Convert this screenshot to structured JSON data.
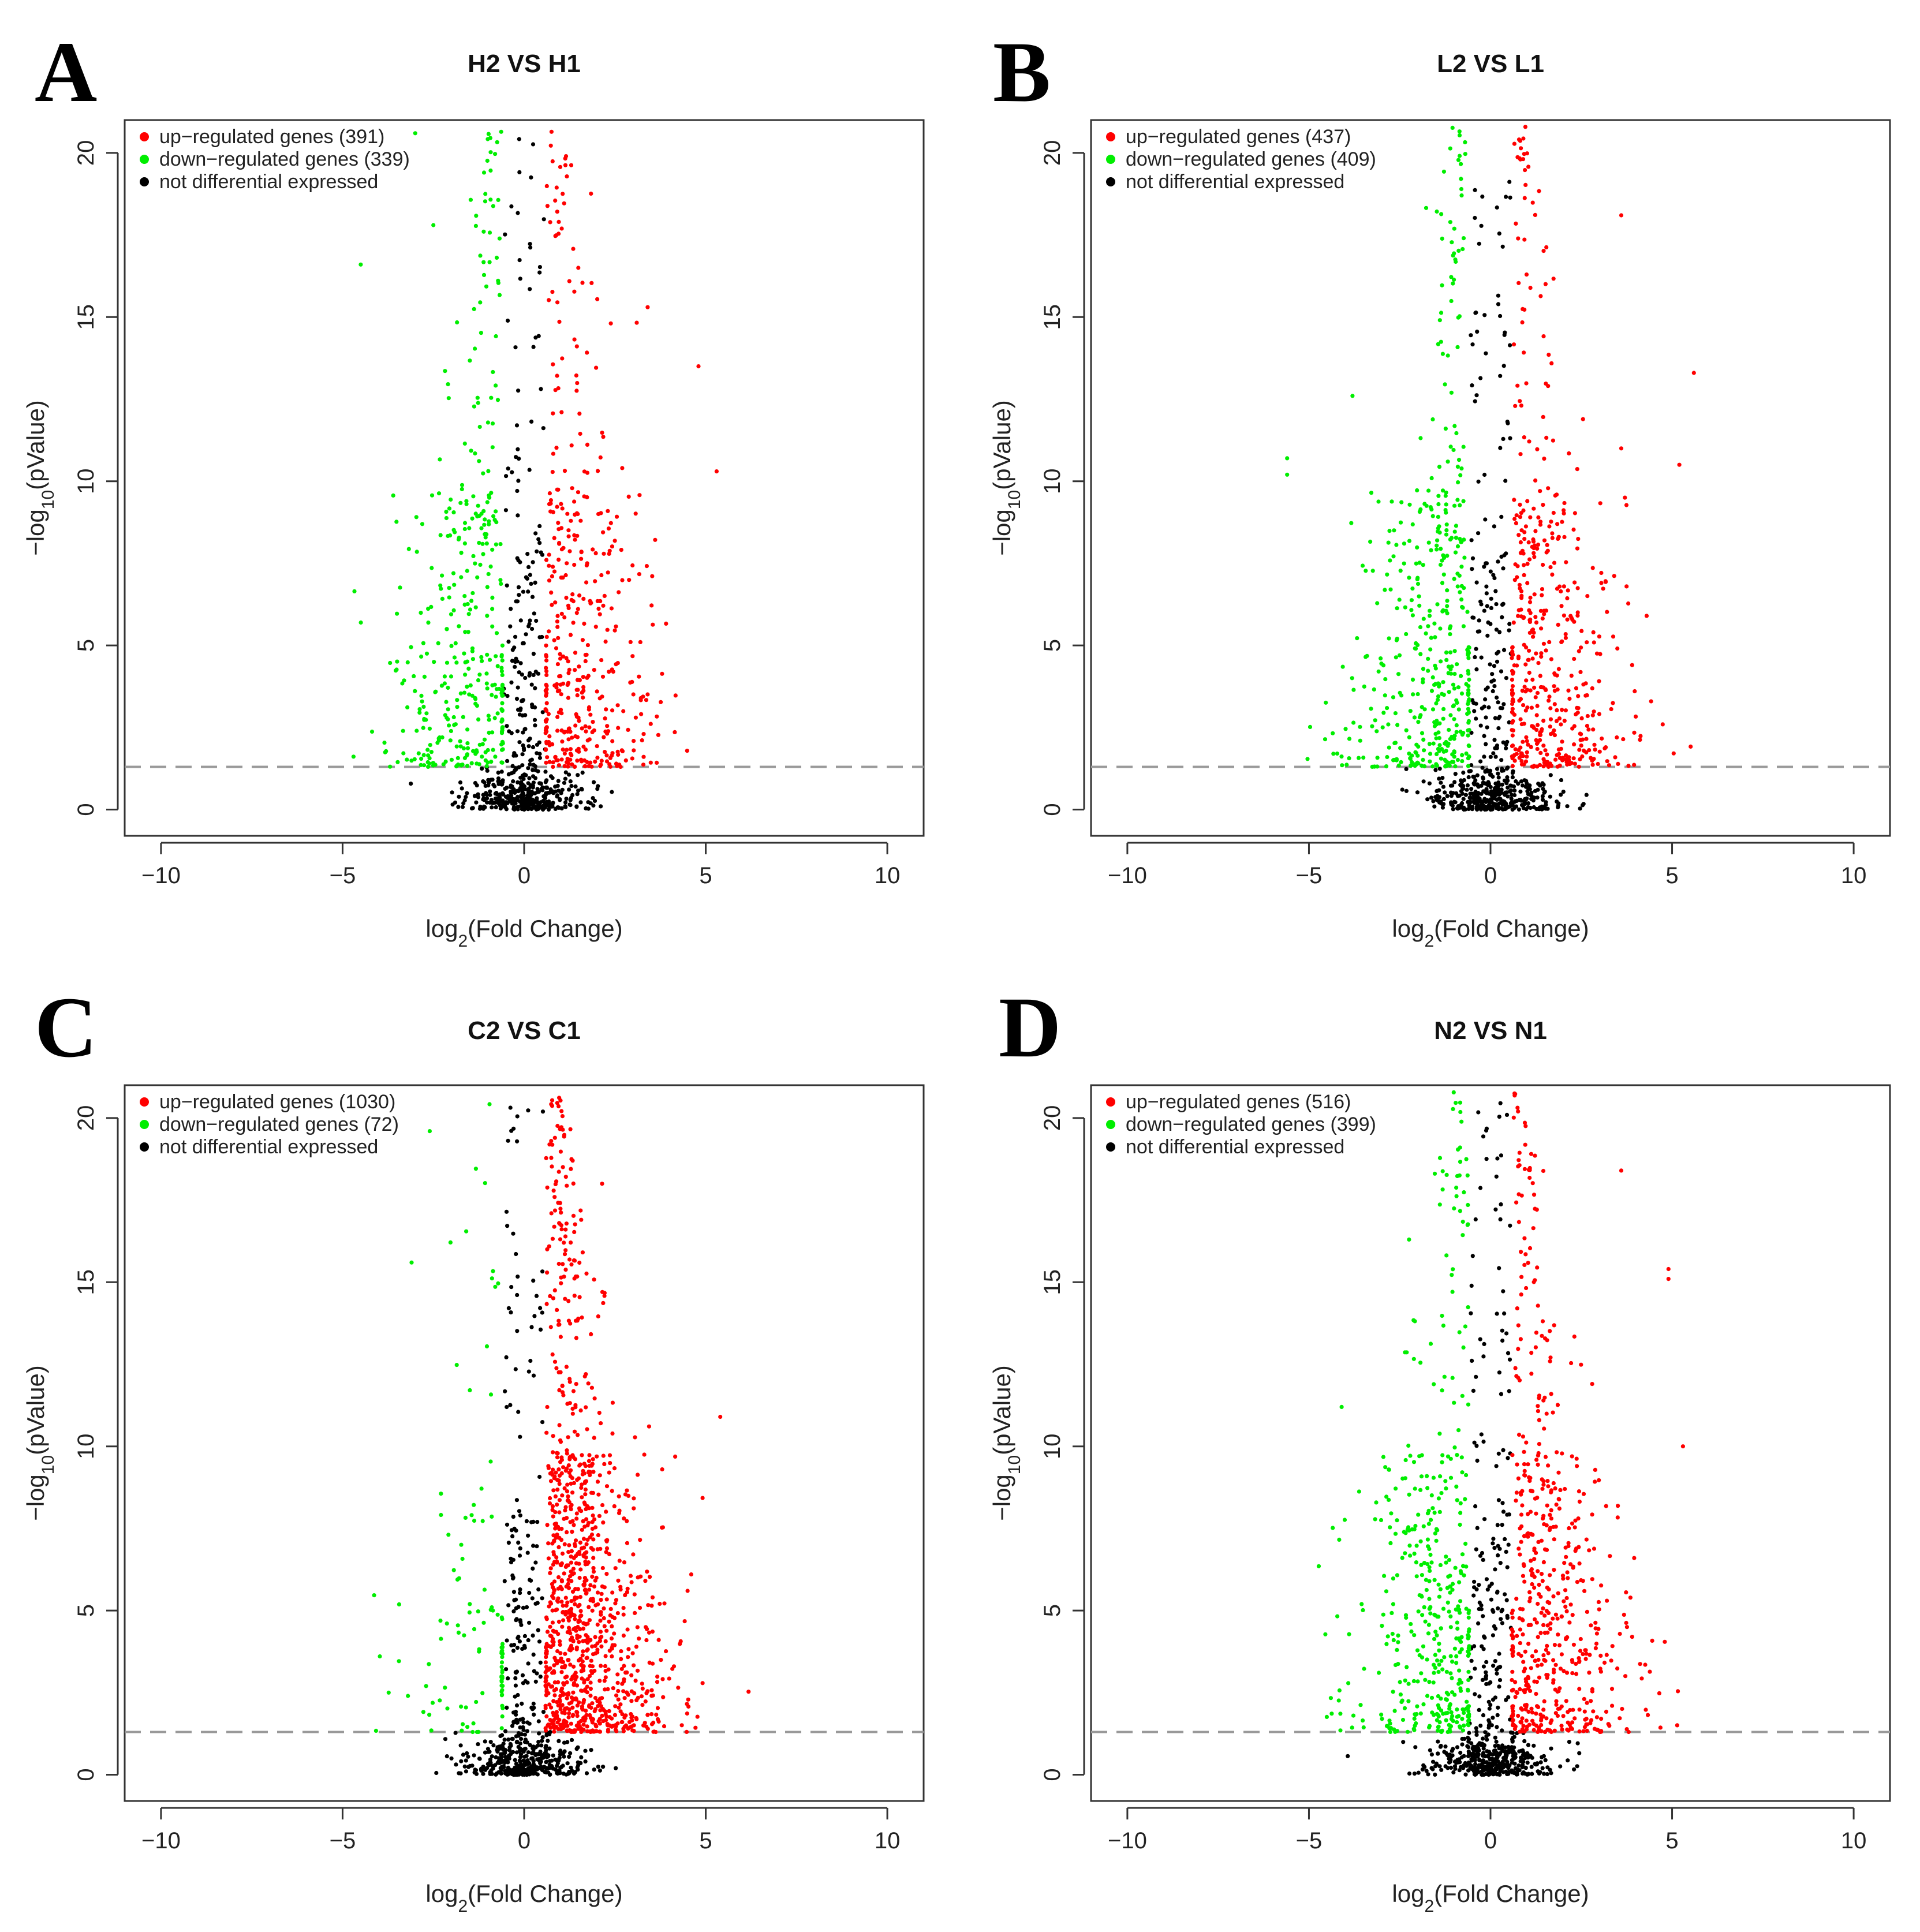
{
  "figure": {
    "panels": [
      "A",
      "B",
      "C",
      "D"
    ]
  },
  "chart_data": [
    {
      "panel": "A",
      "type": "scatter",
      "title": "H2 VS H1",
      "xlabel": "log2(Fold Change)",
      "ylabel": "−log10(pValue)",
      "xlim": [
        -11,
        11
      ],
      "ylim": [
        -0.8,
        21
      ],
      "xticks": [
        -10,
        -5,
        0,
        5,
        10
      ],
      "yticks": [
        0,
        5,
        10,
        15,
        20
      ],
      "threshold_y": 1.3,
      "fc_cutoff": 0.585,
      "legend": {
        "up": "up−regulated genes (391)",
        "down": "down−regulated genes (339)",
        "ns": "not differential expressed"
      },
      "series": [
        {
          "name": "up-regulated genes",
          "count": 391,
          "color": "#ff0000"
        },
        {
          "name": "down-regulated genes",
          "count": 339,
          "color": "#00ee00"
        },
        {
          "name": "not differential expressed",
          "color": "#000000"
        }
      ],
      "outliers": [
        [
          -4.5,
          16.6
        ],
        [
          -2.5,
          17.8
        ],
        [
          -3,
          20.6
        ],
        [
          4.8,
          13.5
        ],
        [
          5.3,
          10.3
        ],
        [
          3.4,
          15.3
        ],
        [
          2.7,
          10.4
        ],
        [
          3.2,
          5.1
        ]
      ],
      "seed": 11
    },
    {
      "panel": "B",
      "type": "scatter",
      "title": "L2 VS L1",
      "xlabel": "log2(Fold Change)",
      "ylabel": "−log10(pValue)",
      "xlim": [
        -11,
        11
      ],
      "ylim": [
        -0.8,
        21
      ],
      "xticks": [
        -10,
        -5,
        0,
        5,
        10
      ],
      "yticks": [
        0,
        5,
        10,
        15,
        20
      ],
      "threshold_y": 1.3,
      "fc_cutoff": 0.585,
      "legend": {
        "up": "up−regulated genes (437)",
        "down": "down−regulated genes (409)",
        "ns": "not differential expressed"
      },
      "series": [
        {
          "name": "up-regulated genes",
          "count": 437,
          "color": "#ff0000"
        },
        {
          "name": "down-regulated genes",
          "count": 409,
          "color": "#00ee00"
        },
        {
          "name": "not differential expressed",
          "color": "#000000"
        }
      ],
      "outliers": [
        [
          -5.6,
          10.7
        ],
        [
          -5.6,
          10.2
        ],
        [
          -3.8,
          12.6
        ],
        [
          3.6,
          18.1
        ],
        [
          5.6,
          13.3
        ],
        [
          5.2,
          10.5
        ],
        [
          4.3,
          5.9
        ],
        [
          3.6,
          11.0
        ],
        [
          3.7,
          9.5
        ],
        [
          3.9,
          4.4
        ]
      ],
      "seed": 23
    },
    {
      "panel": "C",
      "type": "scatter",
      "title": "C2 VS C1",
      "xlabel": "log2(Fold Change)",
      "ylabel": "−log10(pValue)",
      "xlim": [
        -11,
        11
      ],
      "ylim": [
        -0.8,
        21
      ],
      "xticks": [
        -10,
        -5,
        0,
        5,
        10
      ],
      "yticks": [
        0,
        5,
        10,
        15,
        20
      ],
      "threshold_y": 1.3,
      "fc_cutoff": 0.585,
      "legend": {
        "up": "up−regulated genes (1030)",
        "down": "down−regulated genes (72)",
        "ns": "not differential expressed"
      },
      "series": [
        {
          "name": "up-regulated genes",
          "count": 1030,
          "color": "#ff0000"
        },
        {
          "name": "down-regulated genes",
          "count": 72,
          "color": "#00ee00"
        },
        {
          "name": "not differential expressed",
          "color": "#000000"
        }
      ],
      "outliers": [
        [
          -3.1,
          15.6
        ],
        [
          -2.6,
          19.6
        ],
        [
          -3.2,
          2.4
        ],
        [
          -2.7,
          2.7
        ],
        [
          5.4,
          10.9
        ],
        [
          4.6,
          6.1
        ],
        [
          4.5,
          5.6
        ],
        [
          3.8,
          9.3
        ]
      ],
      "seed": 37
    },
    {
      "panel": "D",
      "type": "scatter",
      "title": "N2 VS N1",
      "xlabel": "log2(Fold Change)",
      "ylabel": "−log10(pValue)",
      "xlim": [
        -11,
        11
      ],
      "ylim": [
        -0.8,
        21
      ],
      "xticks": [
        -10,
        -5,
        0,
        5,
        10
      ],
      "yticks": [
        0,
        5,
        10,
        15,
        20
      ],
      "threshold_y": 1.3,
      "fc_cutoff": 0.585,
      "legend": {
        "up": "up−regulated genes (516)",
        "down": "down−regulated genes (399)",
        "ns": "not differential expressed"
      },
      "series": [
        {
          "name": "up-regulated genes",
          "count": 516,
          "color": "#ff0000"
        },
        {
          "name": "down-regulated genes",
          "count": 399,
          "color": "#00ee00"
        },
        {
          "name": "not differential expressed",
          "color": "#000000"
        }
      ],
      "outliers": [
        [
          -4.1,
          11.2
        ],
        [
          4.9,
          15.4
        ],
        [
          4.9,
          15.1
        ],
        [
          5.3,
          10.0
        ],
        [
          3.6,
          18.4
        ],
        [
          2.8,
          11.9
        ],
        [
          3.9,
          4.2
        ]
      ],
      "seed": 51
    }
  ]
}
